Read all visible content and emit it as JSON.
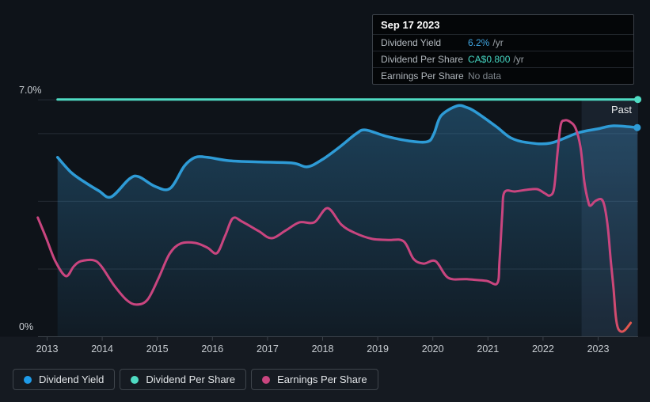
{
  "past_label": "Past",
  "axis": {
    "years": [
      "2013",
      "2014",
      "2015",
      "2016",
      "2017",
      "2018",
      "2019",
      "2020",
      "2021",
      "2022",
      "2023"
    ],
    "y_top_label": "7.0%",
    "y_bottom_label": "0%"
  },
  "tooltip": {
    "date": "Sep 17 2023",
    "rows": [
      {
        "label": "Dividend Yield",
        "value": "6.2%",
        "suffix": "/yr",
        "value_color": "#3FA3DE"
      },
      {
        "label": "Dividend Per Share",
        "value": "CA$0.800",
        "suffix": "/yr",
        "value_color": "#45D6C2"
      },
      {
        "label": "Earnings Per Share",
        "value": "No data",
        "suffix": "",
        "value_color": "#7D848B"
      }
    ]
  },
  "legend": [
    {
      "label": "Dividend Yield",
      "color": "#1E9BE9"
    },
    {
      "label": "Dividend Per Share",
      "color": "#4FDBC3"
    },
    {
      "label": "Earnings Per Share",
      "color": "#C9457F"
    }
  ],
  "colors": {
    "page_bg": "#151A21",
    "chart_bg": "#0E1319",
    "grid": "#262C34",
    "axis": "#3C434B",
    "tick_label": "#C9CED3",
    "yield": "#2E9BD6",
    "dps": "#4FDBC3",
    "eps": "#C9457F",
    "eps_tail": "#E2574E",
    "area_top": "rgba(52,137,191,0.40)",
    "area_bottom": "rgba(52,137,191,0.07)",
    "past_band": "rgba(125,170,230,0.10)",
    "past_text": "#E8EAEC"
  },
  "chart_data": {
    "type": "line",
    "title": "Dividend history",
    "x_range": [
      2012.6,
      2023.95
    ],
    "y_axis": {
      "unit": "%",
      "min": 0,
      "max": 7,
      "gridlines_pct": [
        7,
        6,
        4,
        2
      ],
      "top_label": "7.0%",
      "bottom_label": "0%"
    },
    "x_ticks": [
      2013,
      2014,
      2015,
      2016,
      2017,
      2018,
      2019,
      2020,
      2021,
      2022,
      2023
    ],
    "past_region_start": 2022.7,
    "legend_position": "bottom-left",
    "series": [
      {
        "name": "Dividend Yield",
        "color_key": "yield",
        "current": "6.2% /yr",
        "end_dot": true,
        "area_fill": true,
        "points": [
          [
            2013.19,
            5.3
          ],
          [
            2013.44,
            4.85
          ],
          [
            2013.68,
            4.57
          ],
          [
            2013.94,
            4.31
          ],
          [
            2014.16,
            4.13
          ],
          [
            2014.49,
            4.66
          ],
          [
            2014.66,
            4.73
          ],
          [
            2014.95,
            4.45
          ],
          [
            2015.23,
            4.38
          ],
          [
            2015.49,
            5.04
          ],
          [
            2015.69,
            5.3
          ],
          [
            2015.91,
            5.3
          ],
          [
            2016.31,
            5.2
          ],
          [
            2016.89,
            5.16
          ],
          [
            2017.46,
            5.13
          ],
          [
            2017.72,
            5.02
          ],
          [
            2017.99,
            5.23
          ],
          [
            2018.32,
            5.62
          ],
          [
            2018.61,
            6.0
          ],
          [
            2018.78,
            6.11
          ],
          [
            2019.14,
            5.93
          ],
          [
            2019.55,
            5.79
          ],
          [
            2019.9,
            5.76
          ],
          [
            2020.02,
            6.0
          ],
          [
            2020.15,
            6.53
          ],
          [
            2020.44,
            6.82
          ],
          [
            2020.62,
            6.77
          ],
          [
            2020.77,
            6.65
          ],
          [
            2021.15,
            6.21
          ],
          [
            2021.41,
            5.88
          ],
          [
            2021.7,
            5.74
          ],
          [
            2022.13,
            5.72
          ],
          [
            2022.63,
            6.02
          ],
          [
            2022.99,
            6.14
          ],
          [
            2023.28,
            6.23
          ],
          [
            2023.71,
            6.18
          ]
        ]
      },
      {
        "name": "Dividend Per Share",
        "color_key": "dps",
        "current": "CA$0.800 /yr",
        "end_dot": true,
        "plot_pct": 7.01,
        "x_start": 2013.19,
        "x_end": 2023.72
      },
      {
        "name": "Earnings Per Share",
        "color_key": "eps",
        "current": "No data",
        "end_dot": false,
        "tail_from_x": 2023.28,
        "points": [
          [
            2012.83,
            3.52
          ],
          [
            2012.98,
            2.93
          ],
          [
            2013.15,
            2.23
          ],
          [
            2013.34,
            1.79
          ],
          [
            2013.48,
            2.07
          ],
          [
            2013.61,
            2.23
          ],
          [
            2013.84,
            2.26
          ],
          [
            2013.98,
            2.09
          ],
          [
            2014.21,
            1.53
          ],
          [
            2014.44,
            1.09
          ],
          [
            2014.62,
            0.95
          ],
          [
            2014.82,
            1.09
          ],
          [
            2015.02,
            1.72
          ],
          [
            2015.22,
            2.44
          ],
          [
            2015.42,
            2.75
          ],
          [
            2015.69,
            2.77
          ],
          [
            2015.91,
            2.63
          ],
          [
            2016.08,
            2.47
          ],
          [
            2016.23,
            2.98
          ],
          [
            2016.37,
            3.5
          ],
          [
            2016.54,
            3.4
          ],
          [
            2016.84,
            3.12
          ],
          [
            2017.07,
            2.91
          ],
          [
            2017.33,
            3.14
          ],
          [
            2017.58,
            3.38
          ],
          [
            2017.85,
            3.38
          ],
          [
            2018.09,
            3.8
          ],
          [
            2018.34,
            3.31
          ],
          [
            2018.58,
            3.07
          ],
          [
            2018.9,
            2.89
          ],
          [
            2019.19,
            2.86
          ],
          [
            2019.47,
            2.82
          ],
          [
            2019.65,
            2.3
          ],
          [
            2019.83,
            2.16
          ],
          [
            2020.05,
            2.23
          ],
          [
            2020.28,
            1.74
          ],
          [
            2020.62,
            1.7
          ],
          [
            2020.97,
            1.65
          ],
          [
            2021.17,
            1.58
          ],
          [
            2021.21,
            2.23
          ],
          [
            2021.26,
            3.64
          ],
          [
            2021.3,
            4.27
          ],
          [
            2021.49,
            4.29
          ],
          [
            2021.7,
            4.34
          ],
          [
            2021.89,
            4.36
          ],
          [
            2022.03,
            4.24
          ],
          [
            2022.12,
            4.17
          ],
          [
            2022.2,
            4.38
          ],
          [
            2022.26,
            5.39
          ],
          [
            2022.32,
            6.25
          ],
          [
            2022.39,
            6.39
          ],
          [
            2022.49,
            6.35
          ],
          [
            2022.59,
            6.16
          ],
          [
            2022.68,
            5.6
          ],
          [
            2022.75,
            4.57
          ],
          [
            2022.82,
            3.99
          ],
          [
            2022.86,
            3.87
          ],
          [
            2022.95,
            4.01
          ],
          [
            2023.06,
            4.06
          ],
          [
            2023.12,
            3.82
          ],
          [
            2023.18,
            3.17
          ],
          [
            2023.23,
            2.23
          ],
          [
            2023.28,
            1.41
          ],
          [
            2023.32,
            0.6
          ],
          [
            2023.36,
            0.25
          ],
          [
            2023.42,
            0.15
          ],
          [
            2023.49,
            0.2
          ],
          [
            2023.59,
            0.41
          ]
        ]
      }
    ]
  }
}
